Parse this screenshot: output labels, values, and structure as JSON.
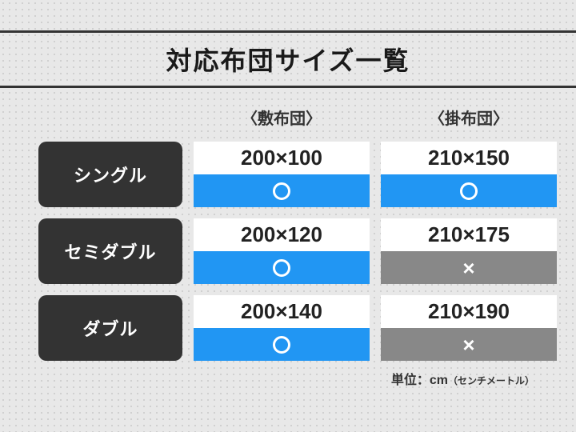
{
  "title": "対応布団サイズ一覧",
  "columns": {
    "shikibuton": "〈敷布団〉",
    "kakebuton": "〈掛布団〉"
  },
  "rows": [
    {
      "label": "シングル",
      "shikibuton": {
        "size": "200×100",
        "status": "ok"
      },
      "kakebuton": {
        "size": "210×150",
        "status": "ok"
      }
    },
    {
      "label": "セミダブル",
      "shikibuton": {
        "size": "200×120",
        "status": "ok"
      },
      "kakebuton": {
        "size": "210×175",
        "status": "ng"
      }
    },
    {
      "label": "ダブル",
      "shikibuton": {
        "size": "200×140",
        "status": "ok"
      },
      "kakebuton": {
        "size": "210×190",
        "status": "ng"
      }
    }
  ],
  "unit_prefix": "単位：",
  "unit_main": "cm",
  "unit_note": "（センチメートル）",
  "colors": {
    "ok": "#2196f3",
    "ng": "#888888",
    "label_bg": "#333333",
    "size_bg": "#ffffff",
    "border": "#333333"
  }
}
